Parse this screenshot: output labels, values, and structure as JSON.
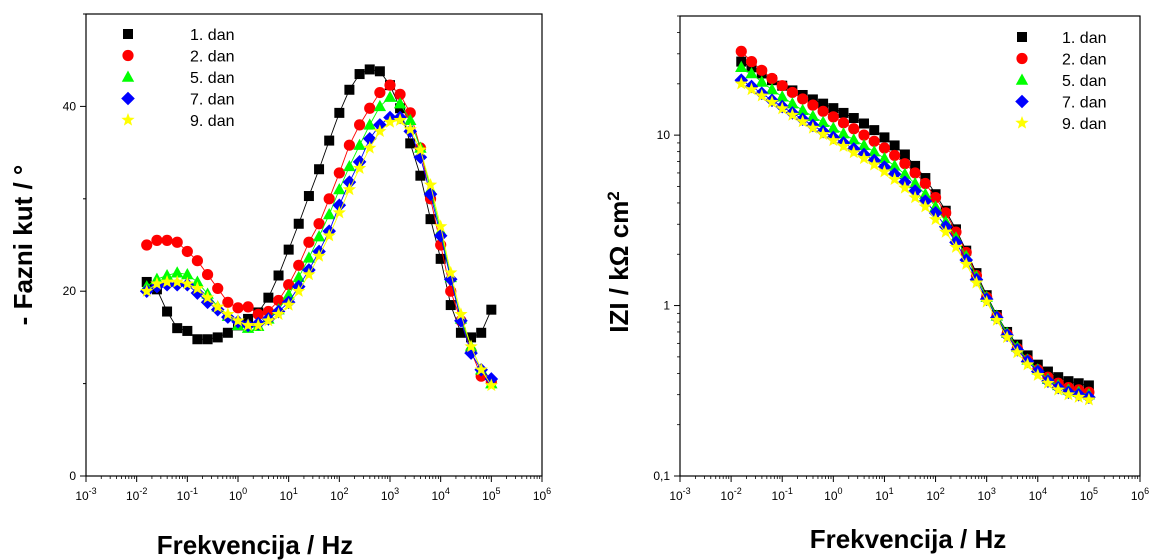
{
  "chart_data": [
    {
      "type": "scatter",
      "panel": "left",
      "xlabel": "Frekvencija / Hz",
      "ylabel": "- Fazni kut / °",
      "xscale": "log",
      "yscale": "linear",
      "xlim": [
        0.001,
        1000000
      ],
      "ylim": [
        0,
        50
      ],
      "x_ticks": [
        {
          "base": "10",
          "exp": "-3"
        },
        {
          "base": "10",
          "exp": "-2"
        },
        {
          "base": "10",
          "exp": "-1"
        },
        {
          "base": "10",
          "exp": "0"
        },
        {
          "base": "10",
          "exp": "1"
        },
        {
          "base": "10",
          "exp": "2"
        },
        {
          "base": "10",
          "exp": "3"
        },
        {
          "base": "10",
          "exp": "4"
        },
        {
          "base": "10",
          "exp": "5"
        },
        {
          "base": "10",
          "exp": "6"
        }
      ],
      "y_ticks": [
        {
          "value": 0,
          "label": "0"
        },
        {
          "value": 20,
          "label": "20"
        },
        {
          "value": 40,
          "label": "40"
        }
      ],
      "legend_position": "top-left",
      "x": [
        0.0158,
        0.0251,
        0.0398,
        0.0631,
        0.1,
        0.158,
        0.251,
        0.398,
        0.631,
        1,
        1.58,
        2.51,
        3.98,
        6.31,
        10,
        15.8,
        25.1,
        39.8,
        63.1,
        100,
        158,
        251,
        398,
        631,
        1000,
        1580,
        2510,
        3980,
        6310,
        10000,
        15800,
        25100,
        39800,
        63100,
        100000
      ],
      "series": [
        {
          "name": "1. dan",
          "marker": "square",
          "color": "#000000",
          "values": [
            21,
            20.2,
            17.8,
            16.0,
            15.7,
            14.8,
            14.8,
            15.0,
            15.5,
            16.3,
            17.0,
            17.7,
            19.3,
            21.7,
            24.5,
            27.3,
            30.3,
            33.2,
            36.3,
            39.3,
            41.8,
            43.5,
            44.0,
            43.8,
            42.3,
            39.8,
            36.0,
            32.5,
            27.8,
            23.5,
            18.5,
            15.5,
            15.0,
            15.5,
            18.0
          ]
        },
        {
          "name": "2. dan",
          "marker": "circle",
          "color": "#ff0000",
          "values": [
            25.0,
            25.5,
            25.5,
            25.3,
            24.3,
            23.3,
            21.8,
            20.3,
            18.8,
            18.2,
            18.3,
            17.5,
            17.8,
            19.0,
            20.7,
            22.8,
            25.3,
            27.3,
            30.0,
            32.8,
            35.8,
            38.0,
            39.8,
            41.5,
            42.3,
            41.3,
            39.3,
            35.5,
            30.0,
            25.0,
            20.0,
            16.8,
            13.5,
            10.8,
            10.2
          ]
        },
        {
          "name": "5. dan",
          "marker": "triangle",
          "color": "#00ff00",
          "values": [
            20.5,
            21.3,
            21.7,
            22.0,
            21.8,
            21.0,
            19.7,
            18.3,
            17.3,
            16.3,
            16.0,
            16.2,
            17.0,
            18.0,
            19.6,
            21.5,
            23.6,
            25.9,
            28.3,
            31.0,
            33.5,
            35.8,
            38.0,
            40.0,
            41.0,
            40.3,
            38.5,
            35.5,
            31.0,
            26.5,
            21.5,
            17.0,
            14.0,
            11.5,
            10.0
          ]
        },
        {
          "name": "7. dan",
          "marker": "diamond",
          "color": "#0000ff",
          "values": [
            20.0,
            20.5,
            20.7,
            20.7,
            20.7,
            19.8,
            18.8,
            18.0,
            17.2,
            16.7,
            16.3,
            16.5,
            17.0,
            17.8,
            18.8,
            20.5,
            22.3,
            24.3,
            26.5,
            29.3,
            31.8,
            34.0,
            36.5,
            38.0,
            38.8,
            38.8,
            37.3,
            34.5,
            30.5,
            26.0,
            21.3,
            16.8,
            13.3,
            11.5,
            10.5
          ]
        },
        {
          "name": "9. dan",
          "marker": "star",
          "color": "#ffff00",
          "values": [
            20.0,
            20.8,
            21.0,
            21.0,
            20.8,
            20.3,
            19.3,
            18.3,
            17.5,
            16.8,
            16.3,
            16.3,
            16.8,
            17.5,
            18.5,
            20.0,
            21.8,
            23.8,
            26.0,
            28.5,
            31.0,
            33.3,
            35.5,
            37.3,
            38.3,
            38.5,
            37.5,
            35.3,
            31.5,
            27.0,
            22.0,
            17.5,
            14.0,
            11.5,
            9.8
          ]
        }
      ]
    },
    {
      "type": "scatter",
      "panel": "right",
      "xlabel": "Frekvencija / Hz",
      "ylabel": "IZI / kΩ cm",
      "ylabel_superscript": "2",
      "xscale": "log",
      "yscale": "log",
      "xlim": [
        0.001,
        1000000
      ],
      "ylim": [
        0.1,
        50
      ],
      "x_ticks": [
        {
          "base": "10",
          "exp": "-3"
        },
        {
          "base": "10",
          "exp": "-2"
        },
        {
          "base": "10",
          "exp": "-1"
        },
        {
          "base": "10",
          "exp": "0"
        },
        {
          "base": "10",
          "exp": "1"
        },
        {
          "base": "10",
          "exp": "2"
        },
        {
          "base": "10",
          "exp": "3"
        },
        {
          "base": "10",
          "exp": "4"
        },
        {
          "base": "10",
          "exp": "5"
        },
        {
          "base": "10",
          "exp": "6"
        }
      ],
      "y_ticks": [
        {
          "value": 0.1,
          "label": "0,1"
        },
        {
          "value": 1,
          "label": "1"
        },
        {
          "value": 10,
          "label": "10"
        }
      ],
      "legend_position": "top-right",
      "x": [
        0.0158,
        0.0251,
        0.0398,
        0.0631,
        0.1,
        0.158,
        0.251,
        0.398,
        0.631,
        1,
        1.58,
        2.51,
        3.98,
        6.31,
        10,
        15.8,
        25.1,
        39.8,
        63.1,
        100,
        158,
        251,
        398,
        631,
        1000,
        1580,
        2510,
        3980,
        6310,
        10000,
        15800,
        25100,
        39800,
        63100,
        100000
      ],
      "series": [
        {
          "name": "1. dan",
          "marker": "square",
          "color": "#000000",
          "values": [
            27,
            25,
            23,
            21,
            19.5,
            18.3,
            17.2,
            16.2,
            15.3,
            14.4,
            13.5,
            12.6,
            11.7,
            10.7,
            9.7,
            8.7,
            7.7,
            6.6,
            5.6,
            4.5,
            3.6,
            2.8,
            2.1,
            1.55,
            1.15,
            0.88,
            0.7,
            0.59,
            0.51,
            0.45,
            0.41,
            0.38,
            0.36,
            0.35,
            0.34
          ]
        },
        {
          "name": "2. dan",
          "marker": "circle",
          "color": "#ff0000",
          "values": [
            31,
            27,
            24,
            21.5,
            19.5,
            17.8,
            16.3,
            15.0,
            13.8,
            12.8,
            11.8,
            10.9,
            10.0,
            9.2,
            8.4,
            7.6,
            6.8,
            6.0,
            5.2,
            4.3,
            3.5,
            2.7,
            2.05,
            1.5,
            1.12,
            0.86,
            0.68,
            0.56,
            0.48,
            0.42,
            0.38,
            0.35,
            0.33,
            0.32,
            0.31
          ]
        },
        {
          "name": "5. dan",
          "marker": "triangle",
          "color": "#00ff00",
          "values": [
            25,
            23,
            20.5,
            18.5,
            16.8,
            15.3,
            14.0,
            12.9,
            11.9,
            11.0,
            10.2,
            9.4,
            8.7,
            8.0,
            7.3,
            6.6,
            5.9,
            5.2,
            4.5,
            3.8,
            3.1,
            2.5,
            1.95,
            1.48,
            1.12,
            0.87,
            0.69,
            0.57,
            0.48,
            0.42,
            0.37,
            0.34,
            0.32,
            0.31,
            0.3
          ]
        },
        {
          "name": "7. dan",
          "marker": "diamond",
          "color": "#0000ff",
          "values": [
            21,
            19.3,
            17.6,
            16.0,
            14.7,
            13.5,
            12.4,
            11.4,
            10.5,
            9.7,
            9.0,
            8.3,
            7.7,
            7.1,
            6.5,
            5.9,
            5.3,
            4.7,
            4.1,
            3.5,
            2.9,
            2.35,
            1.85,
            1.42,
            1.09,
            0.85,
            0.67,
            0.55,
            0.47,
            0.41,
            0.36,
            0.33,
            0.31,
            0.3,
            0.29
          ]
        },
        {
          "name": "9. dan",
          "marker": "star",
          "color": "#ffff00",
          "values": [
            20,
            18.5,
            17.0,
            15.6,
            14.3,
            13.1,
            12.0,
            11.0,
            10.1,
            9.3,
            8.6,
            7.9,
            7.3,
            6.7,
            6.1,
            5.5,
            4.9,
            4.3,
            3.8,
            3.2,
            2.7,
            2.2,
            1.75,
            1.36,
            1.05,
            0.82,
            0.65,
            0.53,
            0.45,
            0.39,
            0.35,
            0.32,
            0.3,
            0.29,
            0.28
          ]
        }
      ]
    }
  ]
}
